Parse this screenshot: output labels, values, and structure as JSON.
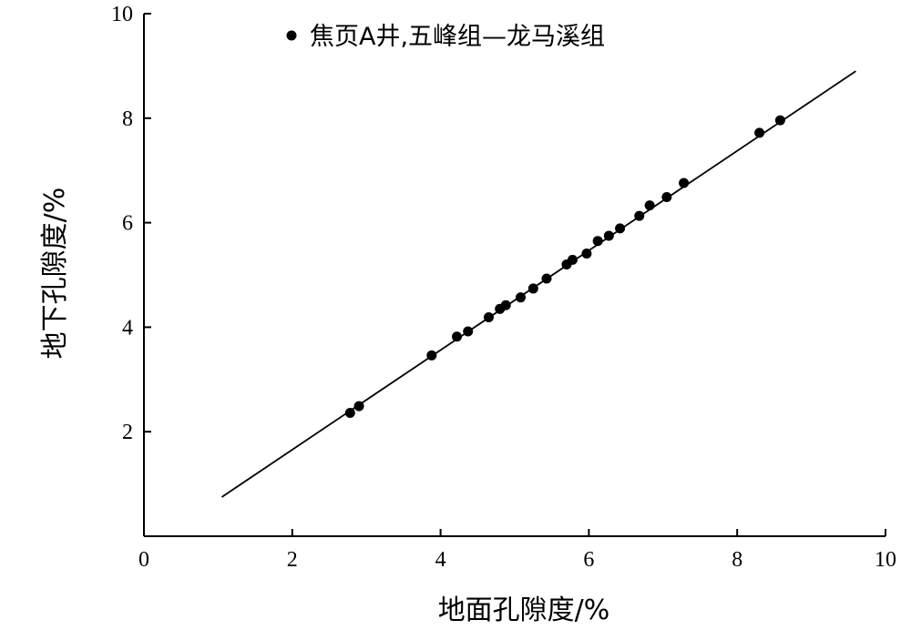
{
  "chart_data": {
    "type": "scatter",
    "xlabel": "地面孔隙度/%",
    "ylabel": "地下孔隙度/%",
    "xlim": [
      0,
      10
    ],
    "ylim": [
      0,
      10
    ],
    "xticks": [
      "0",
      "2",
      "4",
      "6",
      "8",
      "10"
    ],
    "yticks": [
      "2",
      "4",
      "6",
      "8",
      "10"
    ],
    "legend": {
      "position": "top",
      "entries": [
        "焦页A井,五峰组—龙马溪组"
      ]
    },
    "grid": false,
    "marker_color": "#000000",
    "series": [
      {
        "name": "焦页A井,五峰组—龙马溪组",
        "points": [
          {
            "x": 2.78,
            "y": 2.36
          },
          {
            "x": 2.9,
            "y": 2.49
          },
          {
            "x": 3.88,
            "y": 3.46
          },
          {
            "x": 4.22,
            "y": 3.82
          },
          {
            "x": 4.37,
            "y": 3.92
          },
          {
            "x": 4.65,
            "y": 4.19
          },
          {
            "x": 4.8,
            "y": 4.35
          },
          {
            "x": 4.88,
            "y": 4.42
          },
          {
            "x": 5.08,
            "y": 4.57
          },
          {
            "x": 5.25,
            "y": 4.74
          },
          {
            "x": 5.43,
            "y": 4.93
          },
          {
            "x": 5.7,
            "y": 5.2
          },
          {
            "x": 5.78,
            "y": 5.29
          },
          {
            "x": 5.97,
            "y": 5.41
          },
          {
            "x": 6.12,
            "y": 5.65
          },
          {
            "x": 6.27,
            "y": 5.75
          },
          {
            "x": 6.42,
            "y": 5.89
          },
          {
            "x": 6.68,
            "y": 6.13
          },
          {
            "x": 6.82,
            "y": 6.33
          },
          {
            "x": 7.05,
            "y": 6.49
          },
          {
            "x": 7.28,
            "y": 6.76
          },
          {
            "x": 8.3,
            "y": 7.72
          },
          {
            "x": 8.58,
            "y": 7.96
          }
        ]
      }
    ],
    "fit_line": {
      "x": [
        1.05,
        9.6
      ],
      "y": [
        0.75,
        8.9
      ]
    }
  }
}
